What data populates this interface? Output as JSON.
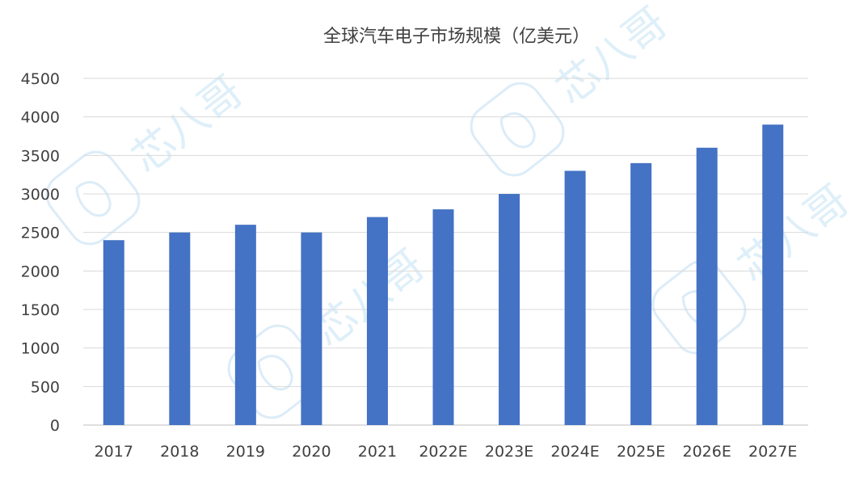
{
  "chart_data": {
    "type": "bar",
    "title": "全球汽车电子市场规模（亿美元）",
    "categories": [
      "2017",
      "2018",
      "2019",
      "2020",
      "2021",
      "2022E",
      "2023E",
      "2024E",
      "2025E",
      "2026E",
      "2027E"
    ],
    "series": [
      {
        "values": [
          2400,
          2500,
          2600,
          2500,
          2700,
          2800,
          3000,
          3300,
          3400,
          3600,
          3900
        ]
      }
    ],
    "ylim": [
      0,
      4500
    ],
    "yticks": [
      0,
      500,
      1000,
      1500,
      2000,
      2500,
      3000,
      3500,
      4000,
      4500
    ],
    "grid": true,
    "legend": "none",
    "bar_color": "#4472C4"
  },
  "watermark": {
    "text": "芯八哥",
    "icon": "parrot-logo-icon",
    "color": "#d6e9f7"
  }
}
